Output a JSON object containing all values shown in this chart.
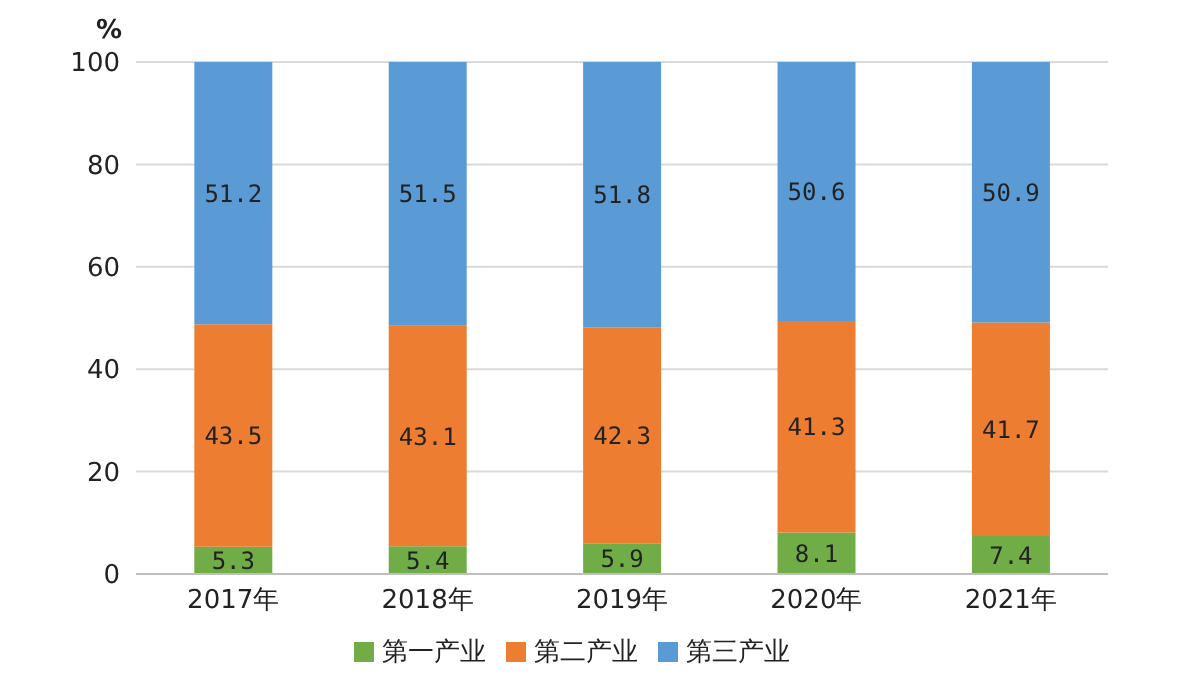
{
  "chart_data": {
    "type": "bar",
    "stacked": true,
    "ylabel": "%",
    "categories": [
      "2017年",
      "2018年",
      "2019年",
      "2020年",
      "2021年"
    ],
    "series": [
      {
        "name": "第一产业",
        "color": "#70ad47",
        "values": [
          5.3,
          5.4,
          5.9,
          8.1,
          7.4
        ]
      },
      {
        "name": "第二产业",
        "color": "#ed7d31",
        "values": [
          43.5,
          43.1,
          42.3,
          41.3,
          41.7
        ]
      },
      {
        "name": "第三产业",
        "color": "#5b9bd5",
        "values": [
          51.2,
          51.5,
          51.8,
          50.6,
          50.9
        ]
      }
    ],
    "ylim": [
      0,
      100
    ],
    "yticks": [
      0,
      20,
      40,
      60,
      80,
      100
    ],
    "grid": "y",
    "legend": "bottom",
    "data_labels": true
  }
}
